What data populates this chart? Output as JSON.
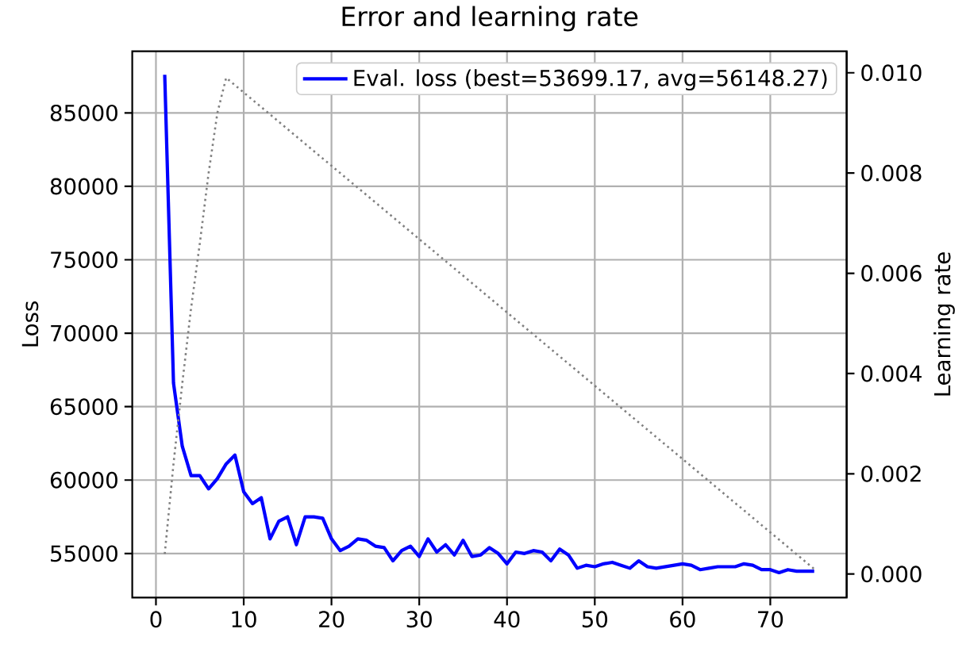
{
  "chart_data": {
    "type": "line",
    "title": "Error and learning rate",
    "ylabel": "Loss",
    "y2label": "Learning rate",
    "x": [
      1,
      2,
      3,
      4,
      5,
      6,
      7,
      8,
      9,
      10,
      11,
      12,
      13,
      14,
      15,
      16,
      17,
      18,
      19,
      20,
      21,
      22,
      23,
      24,
      25,
      26,
      27,
      28,
      29,
      30,
      31,
      32,
      33,
      34,
      35,
      36,
      37,
      38,
      39,
      40,
      41,
      42,
      43,
      44,
      45,
      46,
      47,
      48,
      49,
      50,
      51,
      52,
      53,
      54,
      55,
      56,
      57,
      58,
      59,
      60,
      61,
      62,
      63,
      64,
      65,
      66,
      67,
      68,
      69,
      70,
      71,
      72,
      73,
      74,
      75
    ],
    "series": [
      {
        "name": "Eval. loss (best=53699.17, avg=56148.27)",
        "color": "#0000ff",
        "values": [
          87600,
          66600,
          62300,
          60300,
          60300,
          59400,
          60100,
          61100,
          61700,
          59200,
          58400,
          58800,
          56000,
          57200,
          57500,
          55600,
          57500,
          57500,
          57400,
          56000,
          55200,
          55500,
          56000,
          55900,
          55500,
          55400,
          54500,
          55200,
          55500,
          54800,
          56000,
          55100,
          55600,
          54900,
          55900,
          54800,
          54900,
          55400,
          55000,
          54300,
          55100,
          55000,
          55200,
          55100,
          54500,
          55300,
          54900,
          54000,
          54200,
          54100,
          54300,
          54400,
          54200,
          54000,
          54500,
          54100,
          54000,
          54100,
          54200,
          54300,
          54200,
          53900,
          54000,
          54100,
          54100,
          54100,
          54300,
          54200,
          53900,
          53900,
          53700,
          53900,
          53800,
          53800,
          53800
        ]
      },
      {
        "color": "#808080",
        "axis": "y2",
        "line_style": "dotted",
        "x": [
          1,
          2,
          3,
          4,
          5,
          6,
          7,
          8,
          75
        ],
        "values": [
          0.0004,
          0.0022,
          0.0038,
          0.0053,
          0.0066,
          0.008,
          0.0092,
          0.0099,
          0.0001
        ]
      }
    ],
    "xlim": [
      -2.7,
      78.7
    ],
    "xticks": [
      0,
      10,
      20,
      30,
      40,
      50,
      60,
      70
    ],
    "ylim": [
      52000,
      89200
    ],
    "yticks": [
      55000,
      60000,
      65000,
      70000,
      75000,
      80000,
      85000
    ],
    "y2lim": [
      -0.00047,
      0.01043
    ],
    "y2ticks": [
      {
        "value": 0,
        "label": "0.000"
      },
      {
        "value": 0.002,
        "label": "0.002"
      },
      {
        "value": 0.004,
        "label": "0.004"
      },
      {
        "value": 0.006,
        "label": "0.006"
      },
      {
        "value": 0.008,
        "label": "0.008"
      },
      {
        "value": 0.01,
        "label": "0.010"
      }
    ],
    "grid": true,
    "legend": "top right"
  }
}
